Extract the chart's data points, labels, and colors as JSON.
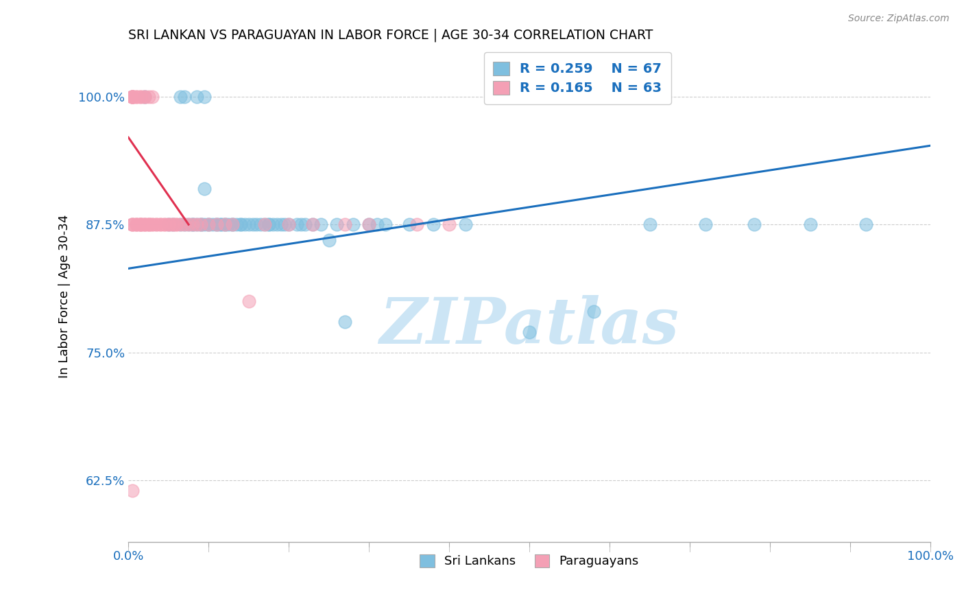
{
  "title": "SRI LANKAN VS PARAGUAYAN IN LABOR FORCE | AGE 30-34 CORRELATION CHART",
  "source": "Source: ZipAtlas.com",
  "ylabel": "In Labor Force | Age 30-34",
  "xlim": [
    0.0,
    1.0
  ],
  "ylim": [
    0.565,
    1.045
  ],
  "yticks": [
    0.625,
    0.75,
    0.875,
    1.0
  ],
  "ytick_labels": [
    "62.5%",
    "75.0%",
    "87.5%",
    "100.0%"
  ],
  "xticks": [
    0.0,
    0.1,
    0.2,
    0.3,
    0.4,
    0.5,
    0.6,
    0.7,
    0.8,
    0.9,
    1.0
  ],
  "xtick_labels_show": {
    "0.0": "0.0%",
    "1.0": "100.0%"
  },
  "legend_r1": "R = 0.259",
  "legend_n1": "N = 67",
  "legend_r2": "R = 0.165",
  "legend_n2": "N = 63",
  "legend_label1": "Sri Lankans",
  "legend_label2": "Paraguayans",
  "blue_color": "#7fbfdf",
  "pink_color": "#f4a0b5",
  "trend_blue": "#1a6fbd",
  "trend_pink": "#e03050",
  "watermark": "ZIPatlas",
  "watermark_color": "#cce5f5",
  "blue_trend_x0": 0.0,
  "blue_trend_y0": 0.832,
  "blue_trend_x1": 1.0,
  "blue_trend_y1": 0.952,
  "pink_trend_x0": 0.0,
  "pink_trend_y0": 0.96,
  "pink_trend_x1": 0.075,
  "pink_trend_y1": 0.875,
  "blue_x": [
    0.02,
    0.05,
    0.055,
    0.065,
    0.065,
    0.07,
    0.07,
    0.075,
    0.08,
    0.08,
    0.085,
    0.085,
    0.09,
    0.09,
    0.095,
    0.095,
    0.095,
    0.1,
    0.1,
    0.105,
    0.11,
    0.11,
    0.115,
    0.115,
    0.12,
    0.12,
    0.125,
    0.13,
    0.13,
    0.135,
    0.14,
    0.14,
    0.145,
    0.15,
    0.155,
    0.16,
    0.165,
    0.17,
    0.175,
    0.175,
    0.18,
    0.185,
    0.19,
    0.195,
    0.2,
    0.21,
    0.215,
    0.22,
    0.23,
    0.24,
    0.25,
    0.26,
    0.27,
    0.28,
    0.3,
    0.31,
    0.32,
    0.35,
    0.38,
    0.42,
    0.5,
    0.58,
    0.65,
    0.72,
    0.78,
    0.85,
    0.92
  ],
  "blue_y": [
    1.0,
    0.875,
    0.875,
    0.875,
    1.0,
    0.875,
    1.0,
    0.875,
    0.875,
    0.875,
    0.875,
    1.0,
    0.875,
    0.875,
    0.91,
    0.875,
    1.0,
    0.875,
    0.875,
    0.875,
    0.875,
    0.875,
    0.875,
    0.875,
    0.875,
    0.875,
    0.875,
    0.875,
    0.875,
    0.875,
    0.875,
    0.875,
    0.875,
    0.875,
    0.875,
    0.875,
    0.875,
    0.875,
    0.875,
    0.875,
    0.875,
    0.875,
    0.875,
    0.875,
    0.875,
    0.875,
    0.875,
    0.875,
    0.875,
    0.875,
    0.86,
    0.875,
    0.78,
    0.875,
    0.875,
    0.875,
    0.875,
    0.875,
    0.875,
    0.875,
    0.77,
    0.79,
    0.875,
    0.875,
    0.875,
    0.875,
    0.875
  ],
  "pink_x": [
    0.005,
    0.005,
    0.005,
    0.005,
    0.005,
    0.005,
    0.005,
    0.005,
    0.005,
    0.01,
    0.01,
    0.01,
    0.01,
    0.01,
    0.015,
    0.015,
    0.015,
    0.015,
    0.015,
    0.015,
    0.02,
    0.02,
    0.02,
    0.02,
    0.02,
    0.025,
    0.025,
    0.025,
    0.025,
    0.03,
    0.03,
    0.03,
    0.035,
    0.035,
    0.04,
    0.04,
    0.045,
    0.045,
    0.05,
    0.05,
    0.055,
    0.055,
    0.06,
    0.06,
    0.065,
    0.07,
    0.075,
    0.08,
    0.085,
    0.09,
    0.1,
    0.11,
    0.12,
    0.13,
    0.15,
    0.17,
    0.2,
    0.23,
    0.27,
    0.3,
    0.36,
    0.4,
    0.005
  ],
  "pink_y": [
    1.0,
    1.0,
    1.0,
    1.0,
    1.0,
    1.0,
    0.875,
    0.875,
    0.875,
    1.0,
    1.0,
    0.875,
    0.875,
    0.875,
    1.0,
    1.0,
    0.875,
    0.875,
    0.875,
    0.875,
    1.0,
    1.0,
    0.875,
    0.875,
    0.875,
    1.0,
    0.875,
    0.875,
    0.875,
    1.0,
    0.875,
    0.875,
    0.875,
    0.875,
    0.875,
    0.875,
    0.875,
    0.875,
    0.875,
    0.875,
    0.875,
    0.875,
    0.875,
    0.875,
    0.875,
    0.875,
    0.875,
    0.875,
    0.875,
    0.875,
    0.875,
    0.875,
    0.875,
    0.875,
    0.8,
    0.875,
    0.875,
    0.875,
    0.875,
    0.875,
    0.875,
    0.875,
    0.615
  ]
}
